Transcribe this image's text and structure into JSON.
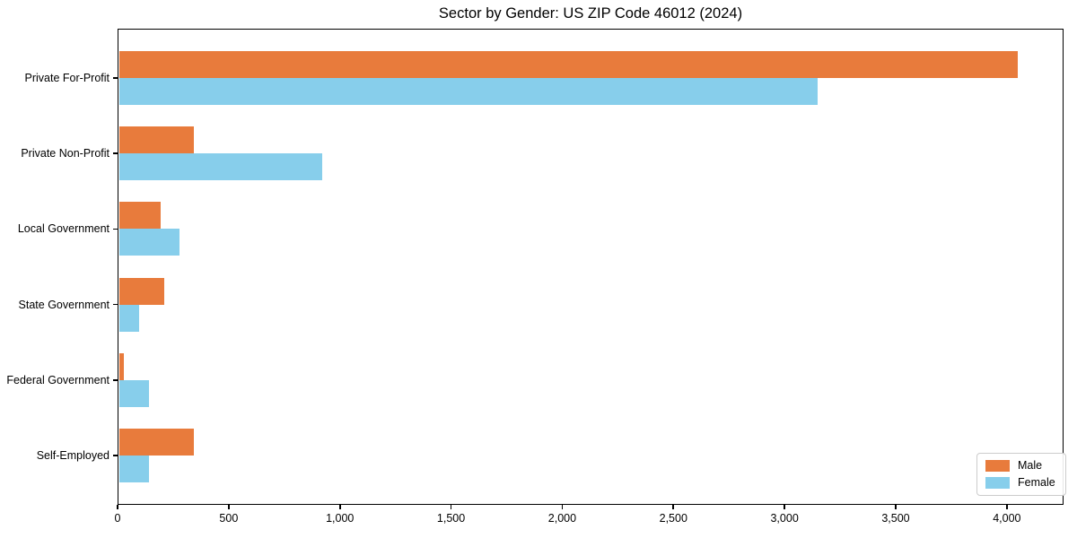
{
  "title": "Sector by Gender: US ZIP Code 46012 (2024)",
  "chart_data": {
    "type": "bar",
    "orientation": "horizontal",
    "title": "Sector by Gender: US ZIP Code 46012 (2024)",
    "categories": [
      "Private For-Profit",
      "Private Non-Profit",
      "Local Government",
      "State Government",
      "Federal Government",
      "Self-Employed"
    ],
    "series": [
      {
        "name": "Male",
        "color": "#e87b3c",
        "values": [
          4050,
          345,
          195,
          210,
          30,
          345
        ]
      },
      {
        "name": "Female",
        "color": "#87ceeb",
        "values": [
          3150,
          920,
          280,
          95,
          140,
          140
        ]
      }
    ],
    "xlabel": "",
    "ylabel": "",
    "xlim": [
      0,
      4255
    ],
    "xticks": [
      0,
      500,
      1000,
      1500,
      2000,
      2500,
      3000,
      3500,
      4000
    ],
    "xtick_labels": [
      "0",
      "500",
      "1,000",
      "1,500",
      "2,000",
      "2,500",
      "3,000",
      "3,500",
      "4,000"
    ],
    "grid": false,
    "legend_position": "lower right"
  }
}
